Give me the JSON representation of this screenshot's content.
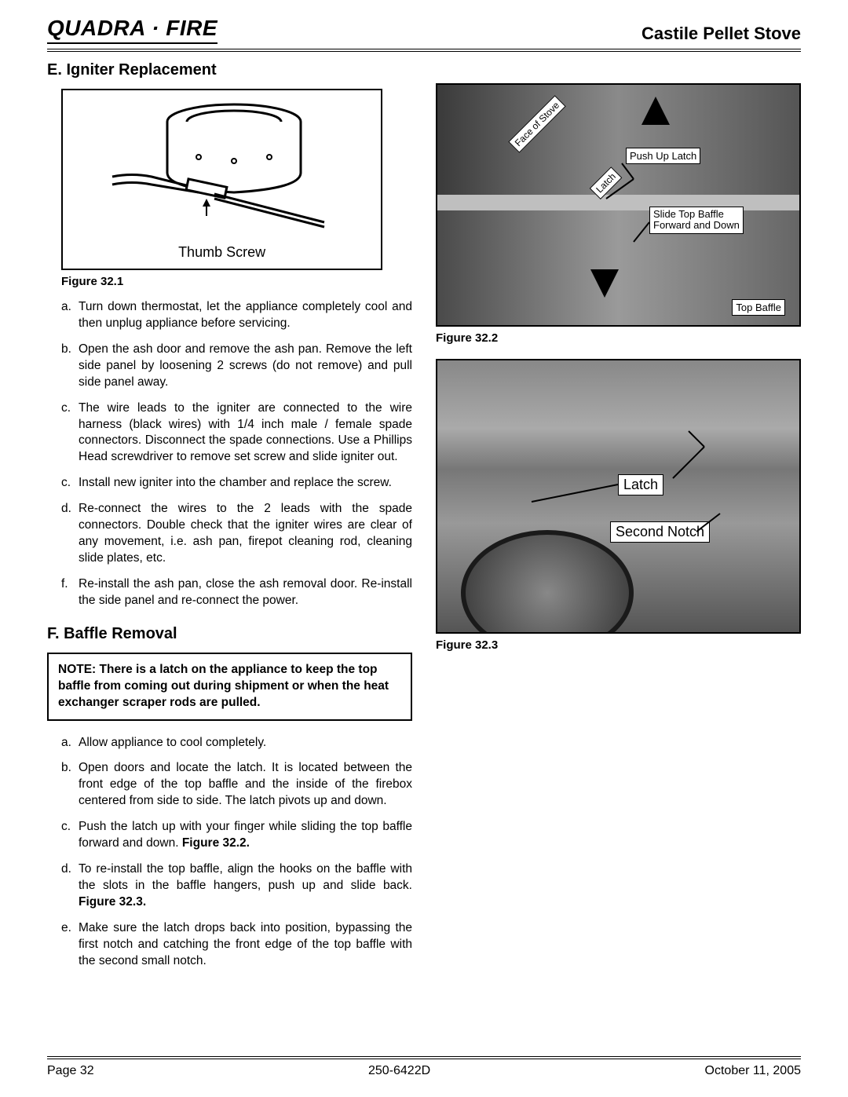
{
  "header": {
    "logo": "QUADRA · FIRE",
    "product": "Castile Pellet Stove"
  },
  "sectionE": {
    "title": "E.  Igniter Replacement",
    "figLabel": "Figure 32.1",
    "diagLabel": "Thumb Screw",
    "steps": [
      {
        "m": "a.",
        "t": "Turn down thermostat, let the appliance completely cool and then unplug appliance before servicing."
      },
      {
        "m": "b.",
        "t": "Open the ash door and remove the ash pan.  Remove the left side panel by loosening 2 screws (do not remove) and pull side panel away."
      },
      {
        "m": "c.",
        "t": "The wire leads to the igniter are connected to the wire harness (black wires) with 1/4 inch male / female spade connectors.   Disconnect the spade connections.  Use a Phillips Head screwdriver to remove set screw and slide igniter out."
      },
      {
        "m": "c.",
        "t": "Install new igniter into the chamber and replace the screw."
      },
      {
        "m": "d.",
        "t": "Re-connect the wires to the 2 leads with the spade connectors.  Double check that the igniter wires are clear of any movement, i.e. ash pan, firepot cleaning rod, cleaning slide plates, etc."
      },
      {
        "m": "f.",
        "t": "Re-install the ash pan, close the ash removal door.  Re-install the side panel and re-connect the power."
      }
    ]
  },
  "sectionF": {
    "title": "F.  Baffle Removal",
    "note": "NOTE:  There is a latch on the appliance to keep the top baffle from coming out during shipment or when the heat exchanger scraper rods are pulled.",
    "steps": [
      {
        "m": "a.",
        "t": "Allow appliance to cool completely.",
        "bold": ""
      },
      {
        "m": "b.",
        "t": "Open doors and locate the latch.  It is located between the front edge of the top baffle and the inside of the firebox centered from side to side.  The latch pivots up and down.",
        "bold": ""
      },
      {
        "m": "c.",
        "t": "Push the latch up with your finger while sliding the top baffle forward and down.  ",
        "bold": "Figure 32.2."
      },
      {
        "m": "d.",
        "t": "To re-install the top baffle, align the hooks on the baffle with the slots in the baffle hangers, push up and slide back.  ",
        "bold": "Figure 32.3."
      },
      {
        "m": "e.",
        "t": "Make sure the latch drops back into position, bypassing the first notch and catching the front edge of the top baffle with the second small notch.",
        "bold": ""
      }
    ]
  },
  "fig322": {
    "caption": "Figure 32.2",
    "labels": {
      "face": "Face of Stove",
      "latch": "Latch",
      "push": "Push Up Latch",
      "slide1": "Slide Top Baffle",
      "slide2": "Forward and Down",
      "top": "Top Baffle"
    }
  },
  "fig323": {
    "caption": "Figure 32.3",
    "labels": {
      "latch": "Latch",
      "second": "Second Notch"
    }
  },
  "footer": {
    "page": "Page  32",
    "docnum": "250-6422D",
    "date": "October 11, 2005"
  }
}
